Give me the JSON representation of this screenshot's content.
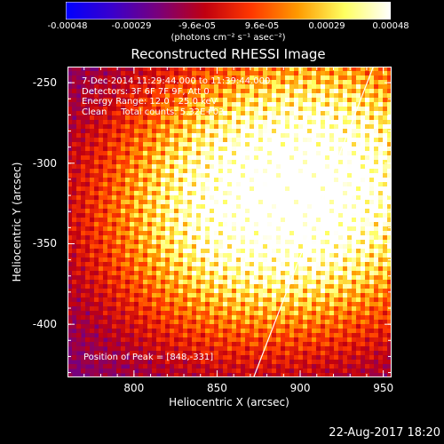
{
  "timestamp": "22-Aug-2017 18:20",
  "colors": {
    "background": "#000000",
    "frame": "#ffffff",
    "limb": "#ffffff",
    "colormap": [
      "#0000ff",
      "#3a00cc",
      "#7a007a",
      "#c00010",
      "#ff3800",
      "#ff9a00",
      "#ffff60",
      "#ffffff"
    ]
  },
  "colorbar": {
    "ticks": [
      "-0.00048",
      "-0.00029",
      "-9.6e-05",
      "9.6e-05",
      "0.00029",
      "0.00048"
    ],
    "unit_label": "(photons cm⁻² s⁻¹ asec⁻²)",
    "range": [
      -0.00048,
      0.00048
    ]
  },
  "annotation": {
    "lines": [
      "7-Dec-2014 11:29:44.000 to 11:39:44.000",
      "Detectors: 3F 6F 7F 9F, Att 0",
      "Energy Range: 12.0 - 25.0 keV",
      "Clean     Total counts: 5.32E+03"
    ],
    "peak": "Position of Peak = [848,-331]"
  },
  "chart_data": {
    "type": "heatmap",
    "title": "Reconstructed RHESSI Image",
    "xlabel": "Heliocentric X (arcsec)",
    "ylabel": "Heliocentric Y (arcsec)",
    "xlim": [
      760,
      955
    ],
    "ylim": [
      -433,
      -240
    ],
    "x_ticks": [
      800,
      850,
      900,
      950
    ],
    "y_ticks": [
      -250,
      -300,
      -350,
      -400
    ],
    "peak": [
      848,
      -331
    ],
    "sources": [
      {
        "x": 848,
        "y": -331,
        "intensity": 1.0
      },
      {
        "x": 925,
        "y": -295,
        "intensity": 0.75
      },
      {
        "x": 930,
        "y": -330,
        "intensity": 0.55
      }
    ],
    "limb": [
      [
        944,
        -240
      ],
      [
        872,
        -433
      ]
    ],
    "value_range": [
      -0.00048,
      0.00048
    ]
  }
}
